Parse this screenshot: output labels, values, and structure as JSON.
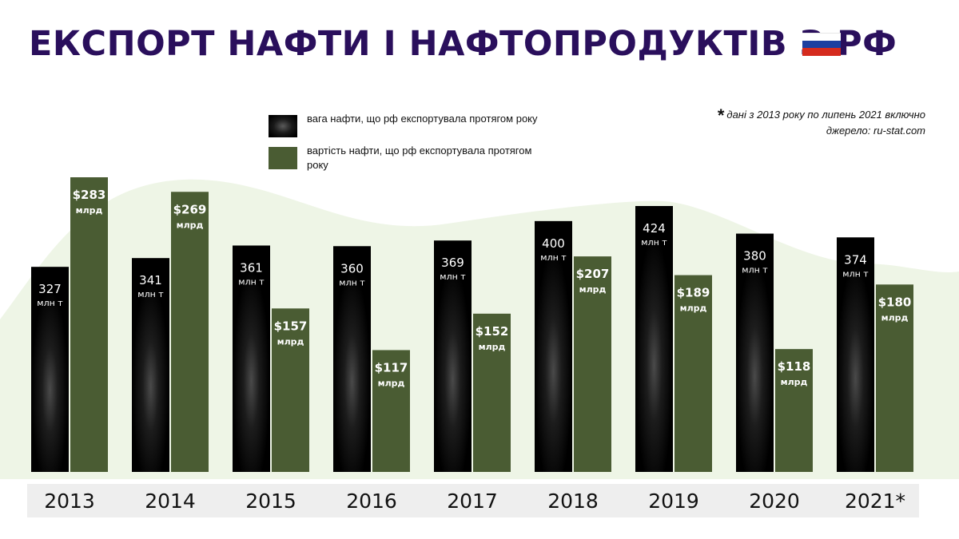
{
  "title": "ЕКСПОРТ НАФТИ І НАФТОПРОДУКТІВ З РФ",
  "flag": {
    "colors": [
      "#ffffff",
      "#1c3fa0",
      "#d52b1e"
    ]
  },
  "legend": {
    "weight": "вага нафти, що рф експортувала протягом року",
    "value": "вартість нафти, що рф експортувала протягом року"
  },
  "note": {
    "star": "*",
    "line1": "дані з 2013 року по липень 2021 включно",
    "line2": "джерело: ru-stat.com"
  },
  "colors": {
    "title": "#2a0f5c",
    "weight_bar": "#000000",
    "value_bar": "#4a5c33",
    "background_wave": "#eef5e6",
    "year_band": "#eeeeee"
  },
  "chart_data": {
    "type": "bar",
    "categories": [
      "2013",
      "2014",
      "2015",
      "2016",
      "2017",
      "2018",
      "2019",
      "2020",
      "2021*"
    ],
    "series": [
      {
        "name": "вага нафти, що рф експортувала протягом року",
        "unit": "млн т",
        "values": [
          327,
          341,
          361,
          360,
          369,
          400,
          424,
          380,
          374
        ],
        "labels": [
          "327",
          "341",
          "361",
          "360",
          "369",
          "400",
          "424",
          "380",
          "374"
        ]
      },
      {
        "name": "вартість нафти, що рф експортувала протягом року",
        "unit": "млрд",
        "values": [
          283,
          269,
          157,
          117,
          152,
          207,
          189,
          118,
          180
        ],
        "labels": [
          "$283",
          "$269",
          "$157",
          "$117",
          "$152",
          "$207",
          "$189",
          "$118",
          "$180"
        ]
      }
    ]
  }
}
